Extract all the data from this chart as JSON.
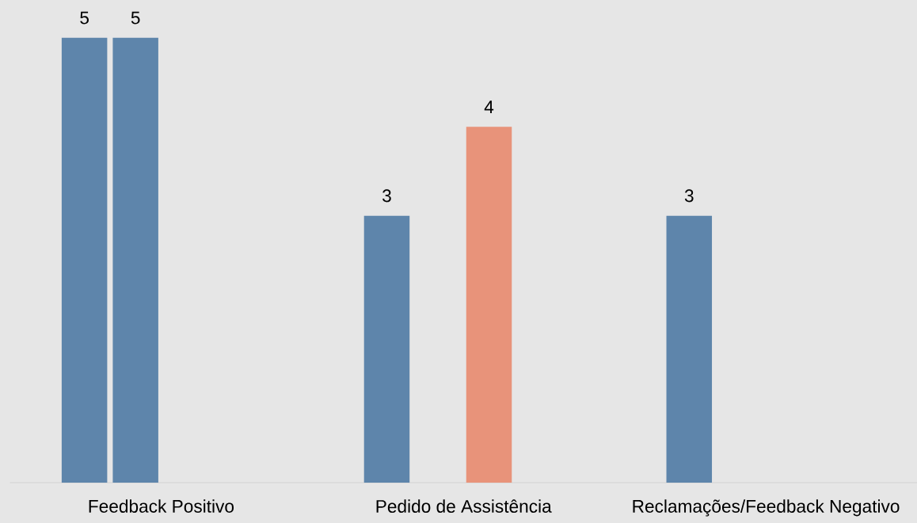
{
  "chart_data": {
    "type": "bar",
    "categories": [
      "Feedback Positivo",
      "Pedido de Assistência",
      "Reclamações/Feedback Negativo"
    ],
    "series": [
      {
        "color": "#5e85ab",
        "values": [
          5,
          3,
          3
        ]
      },
      {
        "color": "#5e85ab",
        "values": [
          5,
          null,
          null
        ]
      },
      {
        "color": "#e8937a",
        "values": [
          null,
          4,
          null
        ]
      },
      {
        "values": [
          null,
          null,
          null
        ]
      }
    ],
    "data_labels": true
  }
}
